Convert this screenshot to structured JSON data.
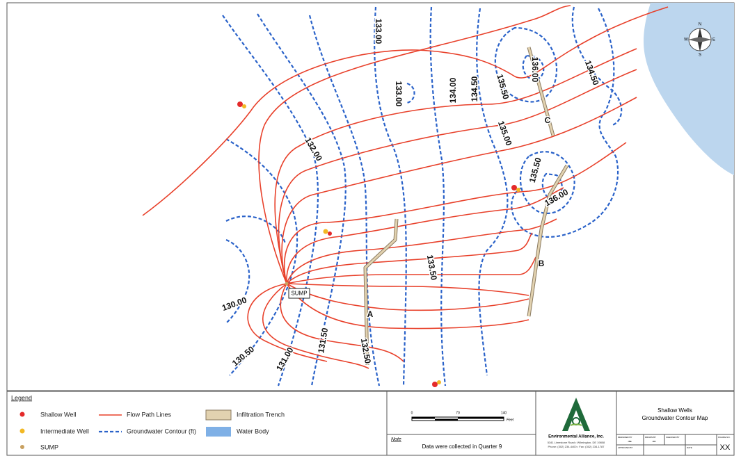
{
  "map": {
    "contour_labels": [
      "133.00",
      "133.00",
      "134.00",
      "134.50",
      "135.50",
      "136.00",
      "134.50",
      "135.00",
      "135.50",
      "136.00",
      "132.00",
      "133.50",
      "132.50",
      "131.50",
      "131.00",
      "130.50",
      "130.00"
    ],
    "trench_labels": [
      "A",
      "B",
      "C"
    ],
    "sump_label": "SUMP",
    "compass": {
      "n": "N",
      "e": "E",
      "s": "S",
      "w": "W"
    }
  },
  "legend": {
    "title": "Legend",
    "items": [
      "Shallow Well",
      "Intermediate Well",
      "SUMP",
      "Flow Path Lines",
      "Groundwater Contour (ft)",
      "Infiltration Trench",
      "Water Body"
    ]
  },
  "scale": {
    "ticks": [
      "0",
      "70",
      "140"
    ],
    "unit": "Feet"
  },
  "note": {
    "label": "Note",
    "text": "Data were collected in Quarter 9"
  },
  "company": {
    "name": "Environmental Alliance, Inc.",
    "address": "5341 Limestone Road • Wilmington, DE 19808",
    "phone": "Phone: (302) 234-4400 • Fax: (302) 234-1787"
  },
  "title_block": {
    "title": [
      "Shallow Wells",
      "Groundwater Contour Map"
    ],
    "fields": [
      "DESIGNED BY",
      "JBE",
      "DRAWN BY",
      "JMJ",
      "CHECKED BY",
      "APPROVED BY",
      "DATE",
      "FIGURE NO."
    ],
    "figure": "XX"
  }
}
